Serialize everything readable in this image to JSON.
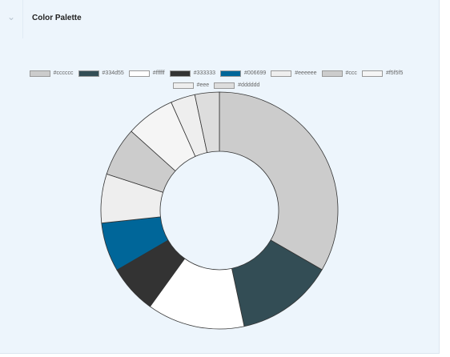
{
  "panel": {
    "title": "Color Palette",
    "collapse_icon": "chevron-down-icon"
  },
  "chart_data": {
    "type": "pie",
    "donut": true,
    "legend_placement": "top",
    "categories": [
      "#cccccc",
      "#334d55",
      "#ffffff",
      "#333333",
      "#006699",
      "#eeeeee",
      "#ccc",
      "#f5f5f5",
      "#eee",
      "#dddddd"
    ],
    "colors": [
      "#cccccc",
      "#334d55",
      "#ffffff",
      "#333333",
      "#006699",
      "#eeeeee",
      "#cccccc",
      "#f5f5f5",
      "#eeeeee",
      "#dddddd"
    ],
    "values": [
      33.3,
      13.3,
      13.3,
      6.67,
      6.67,
      6.67,
      6.67,
      6.67,
      3.33,
      3.33
    ]
  }
}
